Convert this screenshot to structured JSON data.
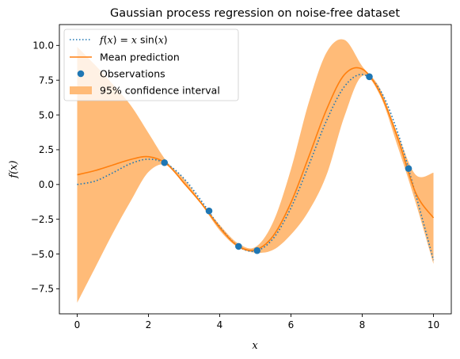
{
  "chart_data": {
    "type": "line",
    "title": "Gaussian process regression on noise-free dataset",
    "xlabel": "x",
    "ylabel": "f(x)",
    "xlim": [
      -0.5,
      10.5
    ],
    "ylim": [
      -9.3,
      11.5
    ],
    "x_ticks": [
      0,
      2,
      4,
      6,
      8,
      10
    ],
    "y_ticks": [
      -7.5,
      -5.0,
      -2.5,
      0.0,
      2.5,
      5.0,
      7.5,
      10.0
    ],
    "x_tick_labels": [
      "0",
      "2",
      "4",
      "6",
      "8",
      "10"
    ],
    "y_tick_labels": [
      "−7.5",
      "−5.0",
      "−2.5",
      "0.0",
      "2.5",
      "5.0",
      "7.5",
      "10.0"
    ],
    "grid": false,
    "legend_position": "top-left",
    "x": [
      0,
      0.5,
      1,
      1.5,
      2,
      2.5,
      3,
      3.5,
      4,
      4.5,
      5,
      5.5,
      6,
      6.5,
      7,
      7.5,
      8,
      8.5,
      9,
      9.5,
      10
    ],
    "series": [
      {
        "name": "f(x) = x sin(x)",
        "legend_label": "$f(x) = x\\sin(x)$",
        "style": "dotted",
        "color": "#1f77b4",
        "values": [
          0.0,
          0.24,
          0.84,
          1.5,
          1.82,
          1.5,
          0.42,
          -1.23,
          -3.03,
          -4.4,
          -4.79,
          -3.89,
          -1.68,
          1.39,
          4.6,
          7.04,
          7.91,
          6.8,
          3.71,
          -0.72,
          -5.44
        ]
      },
      {
        "name": "Mean prediction",
        "legend_label": "Mean prediction",
        "style": "solid",
        "color": "#ff7f0e",
        "values": [
          0.7,
          1.0,
          1.4,
          1.8,
          2.0,
          1.5,
          0.1,
          -1.4,
          -3.1,
          -4.4,
          -4.7,
          -3.7,
          -1.3,
          2.0,
          5.4,
          7.9,
          8.3,
          6.6,
          3.3,
          -0.6,
          -2.4
        ]
      }
    ],
    "confidence_interval": {
      "name": "95% confidence interval",
      "legend_label": "95% confidence interval",
      "color": "#ffbb78",
      "lower": [
        -8.5,
        -6.0,
        -3.5,
        -1.2,
        0.9,
        1.4,
        0.0,
        -1.5,
        -3.3,
        -4.5,
        -4.9,
        -4.7,
        -3.6,
        -1.9,
        0.7,
        4.9,
        7.8,
        6.4,
        2.7,
        -1.3,
        -5.7
      ],
      "upper": [
        9.9,
        8.6,
        7.2,
        5.7,
        3.7,
        1.7,
        0.4,
        -1.3,
        -2.9,
        -4.2,
        -4.5,
        -2.7,
        1.1,
        5.9,
        9.5,
        10.4,
        8.5,
        6.9,
        3.6,
        0.7,
        0.85
      ]
    },
    "observations": {
      "name": "Observations",
      "legend_label": "Observations",
      "color": "#1f77b4",
      "x": [
        2.45,
        3.7,
        4.53,
        5.05,
        8.2,
        9.3
      ],
      "y": [
        1.57,
        -1.9,
        -4.45,
        -4.75,
        7.75,
        1.15
      ]
    }
  }
}
